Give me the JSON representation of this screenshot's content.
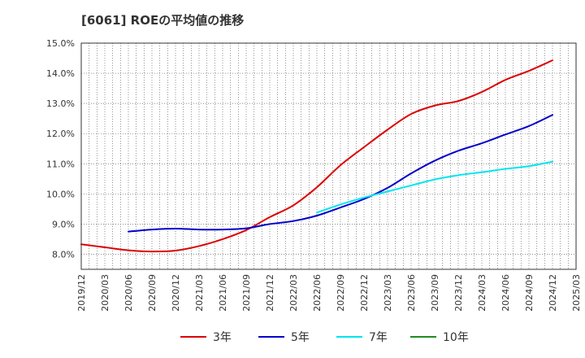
{
  "chart_data": {
    "type": "line",
    "title": "[6061]  ROEの平均値の推移",
    "xlabel": "",
    "ylabel": "",
    "ylim": [
      7.5,
      15.0
    ],
    "grid": true,
    "legend_position": "bottom",
    "y_ticks": [
      "8.0%",
      "9.0%",
      "10.0%",
      "11.0%",
      "12.0%",
      "13.0%",
      "14.0%",
      "15.0%"
    ],
    "y_tick_values": [
      8,
      9,
      10,
      11,
      12,
      13,
      14,
      15
    ],
    "x_ticks": [
      "2019/12",
      "2020/03",
      "2020/06",
      "2020/09",
      "2020/12",
      "2021/03",
      "2021/06",
      "2021/09",
      "2021/12",
      "2022/03",
      "2022/06",
      "2022/09",
      "2022/12",
      "2023/03",
      "2023/06",
      "2023/09",
      "2023/12",
      "2024/03",
      "2024/06",
      "2024/09",
      "2024/12",
      "2025/03"
    ],
    "series": [
      {
        "name": "3年",
        "color": "#dd0000",
        "x": [
          0,
          1,
          2,
          3,
          4,
          5,
          6,
          7,
          8,
          9,
          10,
          11,
          12,
          13,
          14,
          15,
          16,
          17,
          18,
          19,
          20
        ],
        "values": [
          8.33,
          8.23,
          8.13,
          8.09,
          8.12,
          8.27,
          8.5,
          8.8,
          9.23,
          9.62,
          10.22,
          10.95,
          11.55,
          12.13,
          12.65,
          12.93,
          13.08,
          13.38,
          13.78,
          14.08,
          14.43
        ]
      },
      {
        "name": "5年",
        "color": "#0000cc",
        "x": [
          2,
          3,
          4,
          5,
          6,
          7,
          8,
          9,
          10,
          11,
          12,
          13,
          14,
          15,
          16,
          17,
          18,
          19,
          20
        ],
        "values": [
          8.75,
          8.82,
          8.85,
          8.82,
          8.82,
          8.86,
          9.0,
          9.1,
          9.28,
          9.55,
          9.83,
          10.2,
          10.68,
          11.1,
          11.43,
          11.68,
          11.97,
          12.25,
          12.62
        ]
      },
      {
        "name": "7年",
        "color": "#00e5ee",
        "x": [
          10,
          11,
          12,
          13,
          14,
          15,
          16,
          17,
          18,
          19,
          20
        ],
        "values": [
          9.38,
          9.65,
          9.88,
          10.08,
          10.28,
          10.48,
          10.62,
          10.72,
          10.83,
          10.92,
          11.07
        ]
      },
      {
        "name": "10年",
        "color": "#228b22",
        "x": [],
        "values": []
      }
    ]
  }
}
